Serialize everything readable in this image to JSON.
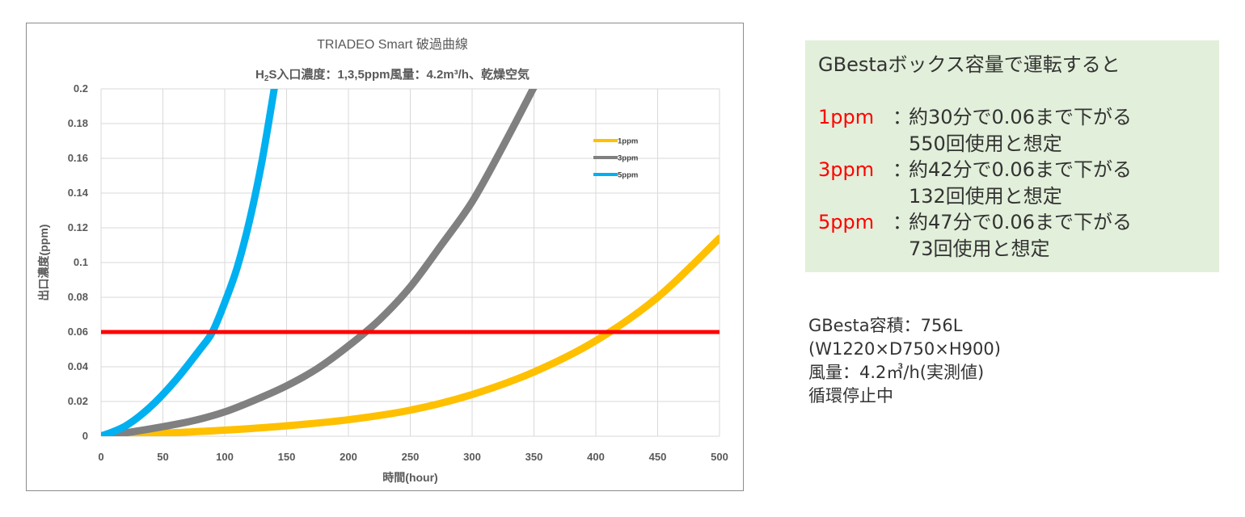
{
  "chart_data": {
    "type": "line",
    "title": "TRIADEO Smart 破過曲線",
    "subtitle_prefix": "H",
    "subtitle_sub": "2",
    "subtitle_rest": "S入口濃度：1,3,5ppm風量：4.2m³/h、乾燥空気",
    "xlabel": "時間(hour)",
    "ylabel": "出口濃度(ppm)",
    "xlim": [
      0,
      500
    ],
    "ylim": [
      0,
      0.2
    ],
    "xticks": [
      "0",
      "50",
      "100",
      "150",
      "200",
      "250",
      "300",
      "350",
      "400",
      "450",
      "500"
    ],
    "yticks": [
      "0",
      "0.02",
      "0.04",
      "0.06",
      "0.08",
      "0.1",
      "0.12",
      "0.14",
      "0.16",
      "0.18",
      "0.2"
    ],
    "grid": true,
    "legend_position": "top-right",
    "threshold": 0.06,
    "series": [
      {
        "name": "1ppm",
        "color": "#ffc000",
        "x": [
          0,
          50,
          100,
          150,
          200,
          250,
          300,
          350,
          400,
          450,
          500
        ],
        "y": [
          0.0005,
          0.0018,
          0.0035,
          0.006,
          0.0095,
          0.015,
          0.024,
          0.037,
          0.055,
          0.08,
          0.114
        ]
      },
      {
        "name": "3ppm",
        "color": "#808080",
        "x": [
          0,
          25,
          50,
          75,
          100,
          125,
          150,
          175,
          200,
          225,
          250,
          275,
          300,
          325,
          350
        ],
        "y": [
          0,
          0.0025,
          0.0055,
          0.009,
          0.014,
          0.021,
          0.029,
          0.039,
          0.052,
          0.067,
          0.086,
          0.11,
          0.135,
          0.167,
          0.201
        ]
      },
      {
        "name": "5ppm",
        "color": "#00b0f0",
        "x": [
          0,
          20,
          40,
          60,
          80,
          90,
          100,
          110,
          120,
          130,
          140
        ],
        "y": [
          0,
          0.006,
          0.017,
          0.032,
          0.05,
          0.06,
          0.077,
          0.097,
          0.124,
          0.158,
          0.2
        ]
      }
    ]
  },
  "info": {
    "heading": "GBestaボックス容量で運転すると",
    "separator": "：",
    "rows": [
      {
        "ppm": "1ppm",
        "line1": "約30分で0.06まで下がる",
        "line2": "550回使用と想定"
      },
      {
        "ppm": "3ppm",
        "line1": "約42分で0.06まで下がる",
        "line2": "132回使用と想定"
      },
      {
        "ppm": "5ppm",
        "line1": "約47分で0.06まで下がる",
        "line2": "73回使用と想定"
      }
    ]
  },
  "spec": {
    "line1": "GBesta容積：756L",
    "line2": "(W1220×D750×H900)",
    "line3": "風量：4.2㎥/h(実測値)",
    "line4": "循環停止中"
  },
  "colors": {
    "threshold": "#ff0000",
    "panel_bg": "#e2efda",
    "ppm_text": "#ff0000"
  }
}
